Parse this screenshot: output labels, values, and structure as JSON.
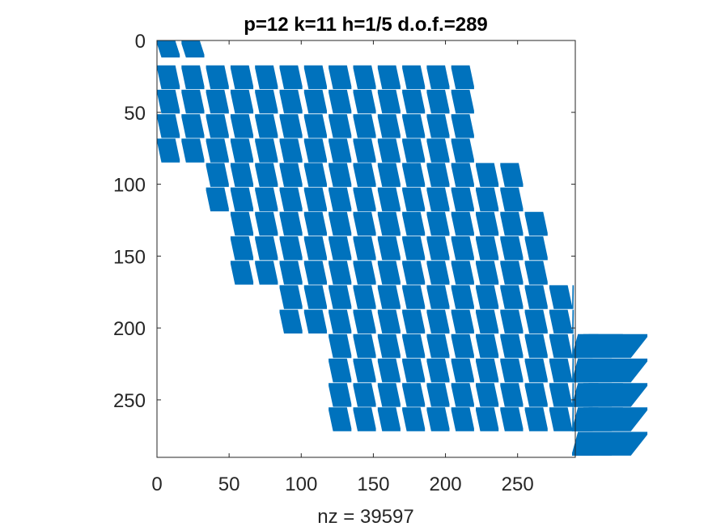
{
  "chart_data": {
    "type": "spy",
    "title": "p=12 k=11 h=1/5 d.o.f.=289",
    "xlabel": "nz = 39597",
    "ylabel": "",
    "matrix_size": 289,
    "nnz": 39597,
    "xlim": [
      0,
      290
    ],
    "ylim": [
      290,
      0
    ],
    "xticks": [
      0,
      50,
      100,
      150,
      200,
      250
    ],
    "yticks": [
      0,
      50,
      100,
      150,
      200,
      250
    ],
    "marker_color": "#0072BD",
    "block_size": 17,
    "block_rows": [
      {
        "start": 0,
        "size": 12,
        "block_cols": [
          0,
          1
        ]
      },
      {
        "start": 17,
        "size": 17,
        "block_cols": [
          0,
          1,
          2,
          3,
          4,
          5,
          6,
          7,
          8,
          9,
          10,
          11,
          12
        ]
      },
      {
        "start": 34,
        "size": 17,
        "block_cols": [
          0,
          1,
          2,
          3,
          4,
          5,
          6,
          7,
          8,
          9,
          10,
          11,
          12
        ]
      },
      {
        "start": 51,
        "size": 17,
        "block_cols": [
          0,
          1,
          2,
          3,
          4,
          5,
          6,
          7,
          8,
          9,
          10,
          11,
          12
        ]
      },
      {
        "start": 68,
        "size": 17,
        "block_cols": [
          0,
          1,
          2,
          3,
          4,
          5,
          6,
          7,
          8,
          9,
          10,
          11,
          12
        ]
      },
      {
        "start": 85,
        "size": 17,
        "block_cols": [
          2,
          3,
          4,
          5,
          6,
          7,
          8,
          9,
          10,
          11,
          12,
          13,
          14
        ]
      },
      {
        "start": 102,
        "size": 17,
        "block_cols": [
          2,
          3,
          4,
          5,
          6,
          7,
          8,
          9,
          10,
          11,
          12,
          13,
          14
        ]
      },
      {
        "start": 119,
        "size": 17,
        "block_cols": [
          3,
          4,
          5,
          6,
          7,
          8,
          9,
          10,
          11,
          12,
          13,
          14,
          15
        ]
      },
      {
        "start": 136,
        "size": 17,
        "block_cols": [
          3,
          4,
          5,
          6,
          7,
          8,
          9,
          10,
          11,
          12,
          13,
          14,
          15
        ]
      },
      {
        "start": 153,
        "size": 17,
        "block_cols": [
          3,
          4,
          5,
          6,
          7,
          8,
          9,
          10,
          11,
          12,
          13,
          14,
          15
        ]
      },
      {
        "start": 170,
        "size": 17,
        "block_cols": [
          5,
          6,
          7,
          8,
          9,
          10,
          11,
          12,
          13,
          14,
          15,
          16,
          17
        ]
      },
      {
        "start": 187,
        "size": 17,
        "block_cols": [
          5,
          6,
          7,
          8,
          9,
          10,
          11,
          12,
          13,
          14,
          15,
          16,
          17
        ]
      },
      {
        "start": 204,
        "size": 17,
        "block_cols": [
          7,
          8,
          9,
          10,
          11,
          12,
          13,
          14,
          15,
          16,
          17,
          18,
          19,
          20
        ]
      },
      {
        "start": 221,
        "size": 17,
        "block_cols": [
          7,
          8,
          9,
          10,
          11,
          12,
          13,
          14,
          15,
          16,
          17,
          18,
          19,
          20
        ]
      },
      {
        "start": 238,
        "size": 17,
        "block_cols": [
          7,
          8,
          9,
          10,
          11,
          12,
          13,
          14,
          15,
          16,
          17,
          18,
          19,
          20
        ]
      },
      {
        "start": 255,
        "size": 17,
        "block_cols": [
          7,
          8,
          9,
          10,
          11,
          12,
          13,
          14,
          15,
          16,
          17,
          18,
          19,
          20
        ]
      },
      {
        "start": 272,
        "size": 17,
        "block_cols": [
          18,
          19,
          20
        ]
      }
    ]
  }
}
